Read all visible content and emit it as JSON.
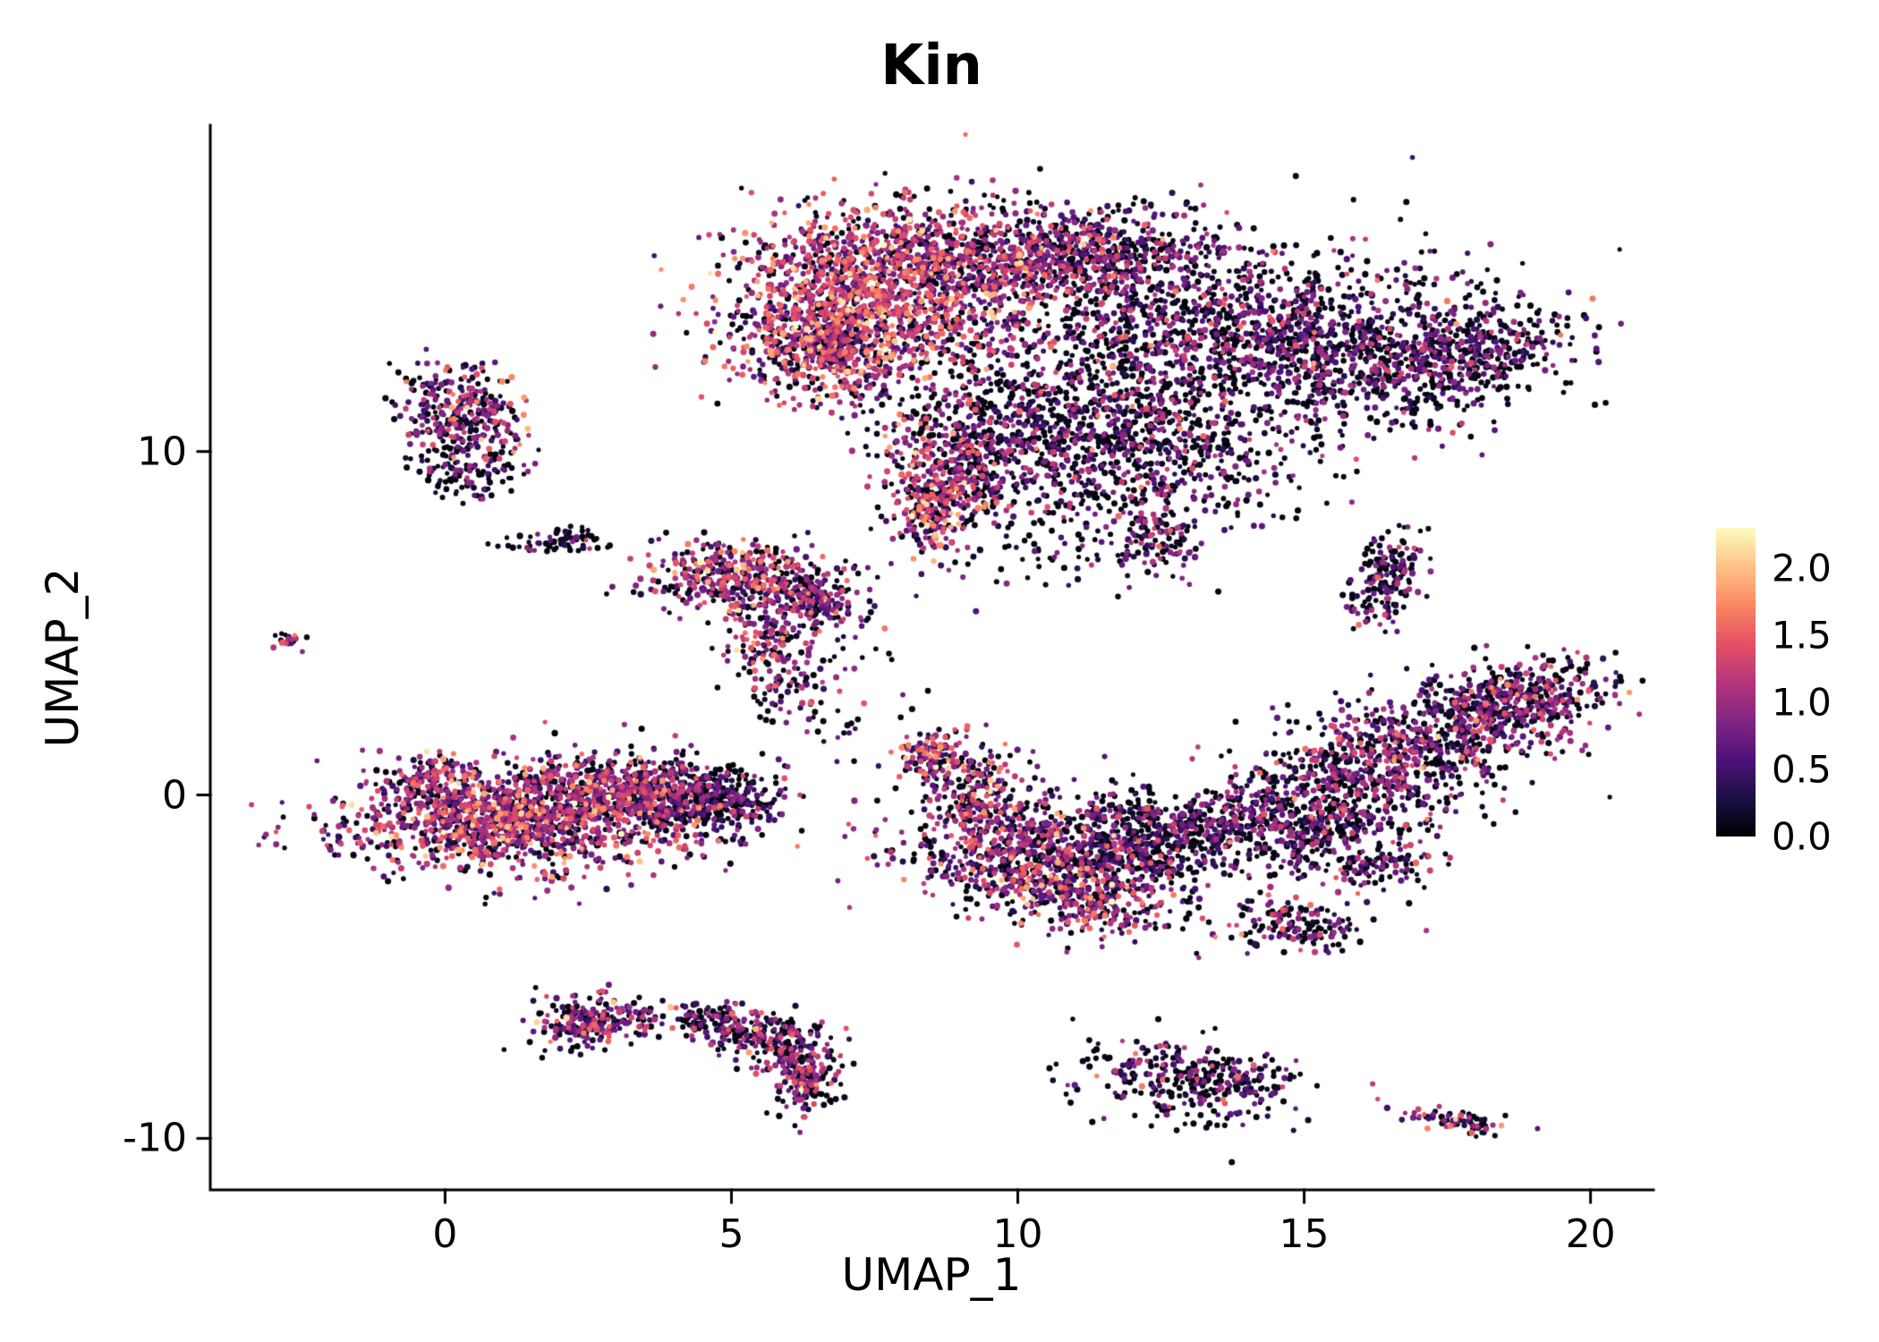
{
  "chart_data": {
    "type": "scatter",
    "title": "Kin",
    "xlabel": "UMAP_1",
    "ylabel": "UMAP_2",
    "xlim": [
      -4.1,
      21.1
    ],
    "ylim": [
      -11.5,
      19.5
    ],
    "grid": false,
    "axis_style": "left-bottom-lines-only",
    "x_ticks": [
      "0",
      "5",
      "10",
      "15",
      "20"
    ],
    "x_tick_values": [
      0,
      5,
      10,
      15,
      20
    ],
    "y_ticks": [
      "10",
      "0",
      "-10"
    ],
    "y_tick_values": [
      10,
      0,
      -10
    ],
    "point_color_encoding": "feature-expression",
    "seed": 42,
    "point_radius": 3.1,
    "colorbar": {
      "position": "right",
      "ticks": [
        "2.0",
        "1.5",
        "1.0",
        "0.5",
        "0.0"
      ],
      "tick_values": [
        2.0,
        1.5,
        1.0,
        0.5,
        0.0
      ],
      "range": [
        0,
        2.3
      ],
      "colormap": "magma",
      "stops": [
        {
          "t": 0,
          "c": "#000004"
        },
        {
          "t": 0.125,
          "c": "#1c1044"
        },
        {
          "t": 0.25,
          "c": "#4f127b"
        },
        {
          "t": 0.375,
          "c": "#812581"
        },
        {
          "t": 0.5,
          "c": "#b5367a"
        },
        {
          "t": 0.625,
          "c": "#e55064"
        },
        {
          "t": 0.75,
          "c": "#fb8761"
        },
        {
          "t": 0.875,
          "c": "#fec287"
        },
        {
          "t": 1,
          "c": "#fcfdbf"
        }
      ]
    },
    "clusters": [
      {
        "name": "top-main-left-pink",
        "n": 1100,
        "x": 7.4,
        "y": 14.6,
        "sx": 1.25,
        "sy": 1.15,
        "rot": -20,
        "p0": 0.18,
        "mu": 1.15,
        "sd": 0.45
      },
      {
        "name": "top-main-upper",
        "n": 700,
        "x": 9.3,
        "y": 15.6,
        "sx": 1.4,
        "sy": 0.8,
        "rot": -10,
        "p0": 0.3,
        "mu": 0.9,
        "sd": 0.45
      },
      {
        "name": "top-main-left-lobe",
        "n": 500,
        "x": 6.6,
        "y": 13.0,
        "sx": 0.8,
        "sy": 0.8,
        "rot": 0,
        "p0": 0.25,
        "mu": 1.0,
        "sd": 0.5
      },
      {
        "name": "top-main-right-dark",
        "n": 1300,
        "x": 13.4,
        "y": 13.4,
        "sx": 2.1,
        "sy": 1.3,
        "rot": 10,
        "p0": 0.42,
        "mu": 0.65,
        "sd": 0.42
      },
      {
        "name": "top-main-far-right",
        "n": 600,
        "x": 16.4,
        "y": 12.6,
        "sx": 1.5,
        "sy": 1.0,
        "rot": 15,
        "p0": 0.45,
        "mu": 0.6,
        "sd": 0.4
      },
      {
        "name": "top-main-right-tip",
        "n": 260,
        "x": 18.1,
        "y": 12.9,
        "sx": 0.8,
        "sy": 0.55,
        "rot": 25,
        "p0": 0.5,
        "mu": 0.55,
        "sd": 0.35
      },
      {
        "name": "top-main-top-middle",
        "n": 450,
        "x": 11.4,
        "y": 15.9,
        "sx": 1.1,
        "sy": 0.65,
        "rot": 0,
        "p0": 0.4,
        "mu": 0.7,
        "sd": 0.4
      },
      {
        "name": "top-main-lower-middle",
        "n": 850,
        "x": 10.4,
        "y": 10.6,
        "sx": 1.5,
        "sy": 1.2,
        "rot": -25,
        "p0": 0.45,
        "mu": 0.6,
        "sd": 0.45
      },
      {
        "name": "top-main-pink-streak",
        "n": 300,
        "x": 8.8,
        "y": 9.3,
        "sx": 0.6,
        "sy": 0.95,
        "rot": 0,
        "p0": 0.25,
        "mu": 1.0,
        "sd": 0.5
      },
      {
        "name": "top-main-lower-right",
        "n": 330,
        "x": 12.6,
        "y": 9.9,
        "sx": 1.3,
        "sy": 0.85,
        "rot": -15,
        "p0": 0.5,
        "mu": 0.55,
        "sd": 0.4
      },
      {
        "name": "top-main-bottom-tip",
        "n": 140,
        "x": 8.45,
        "y": 8.1,
        "sx": 0.3,
        "sy": 0.55,
        "rot": 0,
        "p0": 0.25,
        "mu": 1.05,
        "sd": 0.5
      },
      {
        "name": "below-main-small",
        "n": 120,
        "x": 12.4,
        "y": 7.6,
        "sx": 0.45,
        "sy": 0.5,
        "rot": 0,
        "p0": 0.45,
        "mu": 0.65,
        "sd": 0.4
      },
      {
        "name": "below-main-sparse",
        "n": 60,
        "x": 10.8,
        "y": 6.9,
        "sx": 1.3,
        "sy": 0.6,
        "rot": 0,
        "p0": 0.5,
        "mu": 0.5,
        "sd": 0.4
      },
      {
        "name": "upper-left-cluster",
        "n": 330,
        "x": 0.35,
        "y": 11.0,
        "sx": 0.55,
        "sy": 0.75,
        "rot": 10,
        "p0": 0.3,
        "mu": 0.85,
        "sd": 0.5
      },
      {
        "name": "upper-left-lower-bit",
        "n": 90,
        "x": 0.3,
        "y": 9.4,
        "sx": 0.45,
        "sy": 0.35,
        "rot": 0,
        "p0": 0.5,
        "mu": 0.5,
        "sd": 0.4
      },
      {
        "name": "small-elongated-left",
        "n": 70,
        "x": 1.95,
        "y": 7.4,
        "sx": 0.5,
        "sy": 0.18,
        "rot": 5,
        "p0": 0.55,
        "mu": 0.45,
        "sd": 0.35
      },
      {
        "name": "mid-left-cluster",
        "n": 430,
        "x": 5.2,
        "y": 6.3,
        "sx": 0.85,
        "sy": 0.55,
        "rot": -10,
        "p0": 0.25,
        "mu": 0.95,
        "sd": 0.5
      },
      {
        "name": "mid-left-right-lobe",
        "n": 160,
        "x": 6.5,
        "y": 5.6,
        "sx": 0.5,
        "sy": 0.45,
        "rot": 0,
        "p0": 0.4,
        "mu": 0.7,
        "sd": 0.45
      },
      {
        "name": "mid-left-tail",
        "n": 120,
        "x": 5.6,
        "y": 4.4,
        "sx": 0.4,
        "sy": 0.55,
        "rot": 0,
        "p0": 0.3,
        "mu": 0.95,
        "sd": 0.5
      },
      {
        "name": "mid-left-trail",
        "n": 50,
        "x": 5.95,
        "y": 3.1,
        "sx": 0.3,
        "sy": 0.6,
        "rot": 0,
        "p0": 0.4,
        "mu": 0.7,
        "sd": 0.45
      },
      {
        "name": "tiny-far-left-dot",
        "n": 22,
        "x": -2.7,
        "y": 4.5,
        "sx": 0.16,
        "sy": 0.12,
        "rot": 0,
        "p0": 0.3,
        "mu": 0.9,
        "sd": 0.5
      },
      {
        "name": "bottom-left-main",
        "n": 1500,
        "x": 1.4,
        "y": -0.6,
        "sx": 1.55,
        "sy": 0.8,
        "rot": 5,
        "p0": 0.25,
        "mu": 0.95,
        "sd": 0.5
      },
      {
        "name": "bottom-left-right-lobe",
        "n": 420,
        "x": 3.6,
        "y": 0.1,
        "sx": 0.95,
        "sy": 0.5,
        "rot": -10,
        "p0": 0.3,
        "mu": 0.8,
        "sd": 0.45
      },
      {
        "name": "bottom-left-dark-end",
        "n": 260,
        "x": 4.7,
        "y": -0.2,
        "sx": 0.55,
        "sy": 0.5,
        "rot": 0,
        "p0": 0.55,
        "mu": 0.45,
        "sd": 0.35
      },
      {
        "name": "bottom-left-upper-bump",
        "n": 120,
        "x": -0.3,
        "y": 0.3,
        "sx": 0.4,
        "sy": 0.45,
        "rot": 0,
        "p0": 0.3,
        "mu": 0.9,
        "sd": 0.5
      },
      {
        "name": "mid-bottom-body",
        "n": 650,
        "x": 10.2,
        "y": -1.9,
        "sx": 1.25,
        "sy": 0.75,
        "rot": -10,
        "p0": 0.3,
        "mu": 0.85,
        "sd": 0.5
      },
      {
        "name": "mid-bottom-wing",
        "n": 240,
        "x": 9.2,
        "y": 0.2,
        "sx": 0.5,
        "sy": 0.85,
        "rot": 15,
        "p0": 0.3,
        "mu": 0.9,
        "sd": 0.5
      },
      {
        "name": "mid-bottom-wing-tip",
        "n": 90,
        "x": 8.5,
        "y": 1.2,
        "sx": 0.3,
        "sy": 0.4,
        "rot": 0,
        "p0": 0.25,
        "mu": 1.0,
        "sd": 0.55
      },
      {
        "name": "mid-bottom-right-dark",
        "n": 480,
        "x": 12.0,
        "y": -1.3,
        "sx": 1.05,
        "sy": 0.7,
        "rot": -15,
        "p0": 0.5,
        "mu": 0.55,
        "sd": 0.4
      },
      {
        "name": "mid-bottom-beak",
        "n": 240,
        "x": 11.2,
        "y": -3.1,
        "sx": 0.8,
        "sy": 0.5,
        "rot": -30,
        "p0": 0.3,
        "mu": 0.85,
        "sd": 0.5
      },
      {
        "name": "mid-bottom-far-right",
        "n": 170,
        "x": 13.3,
        "y": -0.8,
        "sx": 0.6,
        "sy": 0.5,
        "rot": 0,
        "p0": 0.45,
        "mu": 0.6,
        "sd": 0.4
      },
      {
        "name": "right-cluster-lower",
        "n": 480,
        "x": 15.8,
        "y": 0.3,
        "sx": 1.0,
        "sy": 0.8,
        "rot": 20,
        "p0": 0.4,
        "mu": 0.7,
        "sd": 0.45
      },
      {
        "name": "right-cluster-mid",
        "n": 560,
        "x": 17.6,
        "y": 1.9,
        "sx": 1.15,
        "sy": 0.75,
        "rot": 30,
        "p0": 0.35,
        "mu": 0.75,
        "sd": 0.45
      },
      {
        "name": "right-cluster-tip",
        "n": 300,
        "x": 18.9,
        "y": 2.9,
        "sx": 0.75,
        "sy": 0.5,
        "rot": 20,
        "p0": 0.4,
        "mu": 0.7,
        "sd": 0.45
      },
      {
        "name": "right-cluster-tail",
        "n": 190,
        "x": 15.2,
        "y": -1.1,
        "sx": 0.6,
        "sy": 0.5,
        "rot": 20,
        "p0": 0.45,
        "mu": 0.6,
        "sd": 0.4
      },
      {
        "name": "right-cluster-hook",
        "n": 120,
        "x": 16.2,
        "y": -2.1,
        "sx": 0.55,
        "sy": 0.35,
        "rot": 10,
        "p0": 0.4,
        "mu": 0.7,
        "sd": 0.45
      },
      {
        "name": "right-cluster-bridge",
        "n": 110,
        "x": 14.3,
        "y": -0.4,
        "sx": 0.5,
        "sy": 0.5,
        "rot": 0,
        "p0": 0.45,
        "mu": 0.6,
        "sd": 0.4
      },
      {
        "name": "small-vertical-right",
        "n": 170,
        "x": 16.45,
        "y": 6.3,
        "sx": 0.28,
        "sy": 0.75,
        "rot": -10,
        "p0": 0.45,
        "mu": 0.65,
        "sd": 0.45
      },
      {
        "name": "small-below-right",
        "n": 150,
        "x": 14.9,
        "y": -3.8,
        "sx": 0.6,
        "sy": 0.38,
        "rot": -15,
        "p0": 0.45,
        "mu": 0.7,
        "sd": 0.5
      },
      {
        "name": "bottom-left-blob",
        "n": 200,
        "x": 2.4,
        "y": -6.6,
        "sx": 0.45,
        "sy": 0.42,
        "rot": 0,
        "p0": 0.3,
        "mu": 0.85,
        "sd": 0.5
      },
      {
        "name": "bottom-left-blob-side",
        "n": 35,
        "x": 3.3,
        "y": -6.5,
        "sx": 0.35,
        "sy": 0.2,
        "rot": 0,
        "p0": 0.5,
        "mu": 0.5,
        "sd": 0.4
      },
      {
        "name": "crescent-top",
        "n": 170,
        "x": 4.9,
        "y": -6.7,
        "sx": 0.5,
        "sy": 0.33,
        "rot": -15,
        "p0": 0.35,
        "mu": 0.8,
        "sd": 0.45
      },
      {
        "name": "crescent-mid",
        "n": 150,
        "x": 5.9,
        "y": -7.3,
        "sx": 0.38,
        "sy": 0.5,
        "rot": -40,
        "p0": 0.4,
        "mu": 0.7,
        "sd": 0.45
      },
      {
        "name": "crescent-bottom",
        "n": 160,
        "x": 6.3,
        "y": -8.4,
        "sx": 0.25,
        "sy": 0.55,
        "rot": -10,
        "p0": 0.35,
        "mu": 0.8,
        "sd": 0.5
      },
      {
        "name": "bottom-middle-blob",
        "n": 340,
        "x": 13.0,
        "y": -8.3,
        "sx": 0.95,
        "sy": 0.6,
        "rot": -15,
        "p0": 0.5,
        "mu": 0.6,
        "sd": 0.45
      },
      {
        "name": "tiny-bottom-right",
        "n": 70,
        "x": 17.6,
        "y": -9.5,
        "sx": 0.45,
        "sy": 0.18,
        "rot": -10,
        "p0": 0.3,
        "mu": 0.9,
        "sd": 0.5
      },
      {
        "name": "sparse-center",
        "n": 45,
        "x": 7.0,
        "y": 2.9,
        "sx": 0.7,
        "sy": 0.9,
        "rot": 0,
        "p0": 0.45,
        "mu": 0.6,
        "sd": 0.4
      }
    ]
  }
}
